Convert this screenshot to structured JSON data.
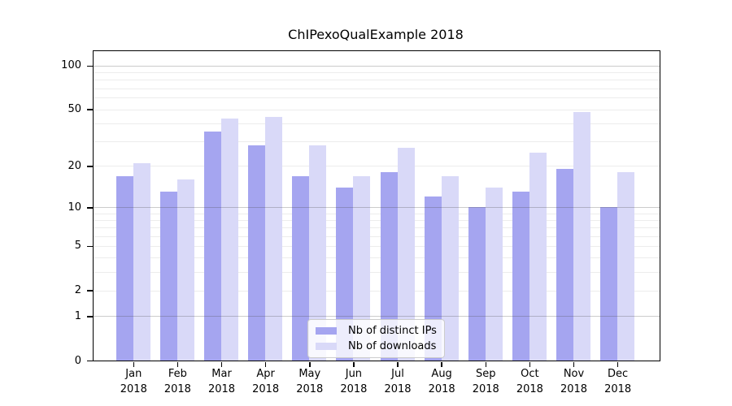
{
  "title": "ChIPexoQualExample 2018",
  "legend": {
    "position": "lower center",
    "items": [
      {
        "label": "Nb of distinct IPs",
        "color": "#a5a5f0"
      },
      {
        "label": "Nb of downloads",
        "color": "#d9d9f8"
      }
    ]
  },
  "colors": {
    "bar_distinct_ips": "#a5a5f0",
    "bar_downloads": "#d9d9f8",
    "grid_minor": "#ececec",
    "grid_major": "#bfbfbf",
    "axis": "#000000",
    "background": "#ffffff"
  },
  "chart_data": {
    "type": "bar",
    "title": "ChIPexoQualExample 2018",
    "xlabel": "",
    "ylabel": "",
    "year": "2018",
    "categories": [
      "Jan",
      "Feb",
      "Mar",
      "Apr",
      "May",
      "Jun",
      "Jul",
      "Aug",
      "Sep",
      "Oct",
      "Nov",
      "Dec"
    ],
    "series": [
      {
        "name": "Nb of distinct IPs",
        "color": "#a5a5f0",
        "values": [
          17,
          13,
          35,
          28,
          17,
          14,
          18,
          12,
          10,
          13,
          19,
          10
        ]
      },
      {
        "name": "Nb of downloads",
        "color": "#d9d9f8",
        "values": [
          21,
          16,
          43,
          44,
          28,
          17,
          27,
          17,
          14,
          25,
          48,
          18
        ]
      }
    ],
    "yscale": "log1p",
    "ylim": [
      0,
      125
    ],
    "ytick_values": [
      100,
      50,
      20,
      10,
      5,
      2,
      1,
      0
    ],
    "grid_minor_values": [
      2,
      3,
      4,
      5,
      6,
      7,
      8,
      9,
      20,
      30,
      40,
      50,
      60,
      70,
      80,
      90
    ],
    "grid_major_values": [
      1,
      10,
      100
    ],
    "grid": true,
    "legend_position": "lower center"
  }
}
